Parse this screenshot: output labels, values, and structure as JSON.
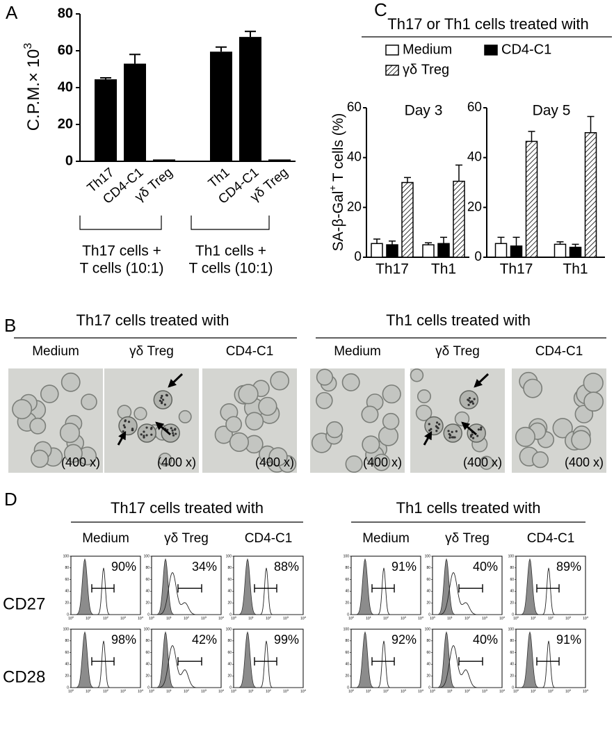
{
  "chart_data": [
    {
      "type": "bar",
      "panel": "A",
      "ylabel": {
        "text": "C.P.M.× 10",
        "sup": "3"
      },
      "categories": [
        "Th17",
        "CD4-C1",
        "γδ Treg",
        "Th1",
        "CD4-C1",
        "γδ Treg"
      ],
      "values": [
        44.5,
        53,
        1,
        59.5,
        67.5,
        1
      ],
      "errors": [
        0.8,
        5,
        null,
        2.5,
        3,
        null
      ],
      "color": "#000000",
      "ylim": [
        0,
        80
      ],
      "yticks": [
        0,
        20,
        40,
        60,
        80
      ],
      "group_labels": [
        [
          "Th17 cells +",
          "T cells (10:1)"
        ],
        [
          "Th1 cells +",
          "T cells (10:1)"
        ]
      ]
    },
    {
      "type": "bar",
      "panel": "C",
      "header": "Th17 or Th1 cells treated with",
      "title": "Day 3",
      "ylabel": {
        "text": "SA-β-Gal",
        "sup": "+",
        "after": "T cells (%)"
      },
      "categories": [
        "Th17",
        "Th1"
      ],
      "series": [
        {
          "name": "Medium",
          "color": "#ffffff",
          "values": [
            5.5,
            5
          ],
          "errors": [
            1.8,
            0.8
          ]
        },
        {
          "name": "CD4-C1",
          "color": "#000000",
          "values": [
            5,
            5.5
          ],
          "errors": [
            1.5,
            2.5
          ]
        },
        {
          "name": "γδ Treg",
          "color": "#ffffff",
          "pattern": "hatch",
          "values": [
            30,
            30.5
          ],
          "errors": [
            2,
            6.5
          ]
        }
      ],
      "ylim": [
        0,
        60
      ],
      "yticks": [
        0,
        20,
        40,
        60
      ],
      "legend": "top"
    },
    {
      "type": "bar",
      "title": "Day 5",
      "categories": [
        "Th17",
        "Th1"
      ],
      "series": [
        {
          "color": "#ffffff",
          "values": [
            5.5,
            5.2
          ],
          "errors": [
            2.5,
            1
          ]
        },
        {
          "color": "#000000",
          "values": [
            4.5,
            4
          ],
          "errors": [
            3.5,
            1.2
          ]
        },
        {
          "color": "#ffffff",
          "pattern": "hatch",
          "values": [
            46.5,
            50
          ],
          "errors": [
            4,
            6.5
          ]
        }
      ],
      "ylim": [
        0,
        60
      ],
      "yticks": [
        0,
        20,
        40,
        60
      ]
    }
  ],
  "panel_b": {
    "letter": "B",
    "groups": [
      {
        "title": "Th17 cells treated with",
        "images": [
          {
            "label": "Medium",
            "magnification": "(400 x)"
          },
          {
            "label": "γδ Treg",
            "magnification": "(400 x)"
          },
          {
            "label": "CD4-C1",
            "magnification": "(400 x)"
          }
        ]
      },
      {
        "title": "Th1 cells treated with",
        "images": [
          {
            "label": "Medium",
            "magnification": "(400 x)"
          },
          {
            "label": "γδ Treg",
            "magnification": "(400 x)"
          },
          {
            "label": "CD4-C1",
            "magnification": "(400 x)"
          }
        ]
      }
    ]
  },
  "panel_d": {
    "letter": "D",
    "groups": [
      {
        "title": "Th17 cells treated with",
        "columns": [
          "Medium",
          "γδ Treg",
          "CD4-C1"
        ]
      },
      {
        "title": "Th1 cells treated with",
        "columns": [
          "Medium",
          "γδ Treg",
          "CD4-C1"
        ]
      }
    ],
    "rows": [
      {
        "label": "CD27",
        "percents": [
          [
            "90%",
            "34%",
            "88%"
          ],
          [
            "91%",
            "40%",
            "89%"
          ]
        ]
      },
      {
        "label": "CD28",
        "percents": [
          [
            "98%",
            "42%",
            "99%"
          ],
          [
            "92%",
            "40%",
            "91%"
          ]
        ]
      }
    ],
    "hist_yticks": [
      0,
      20,
      40,
      60,
      80,
      100
    ],
    "hist_xtick_base": "10",
    "hist_xtick_exponents": [
      "0",
      "1",
      "2",
      "3",
      "4"
    ]
  }
}
